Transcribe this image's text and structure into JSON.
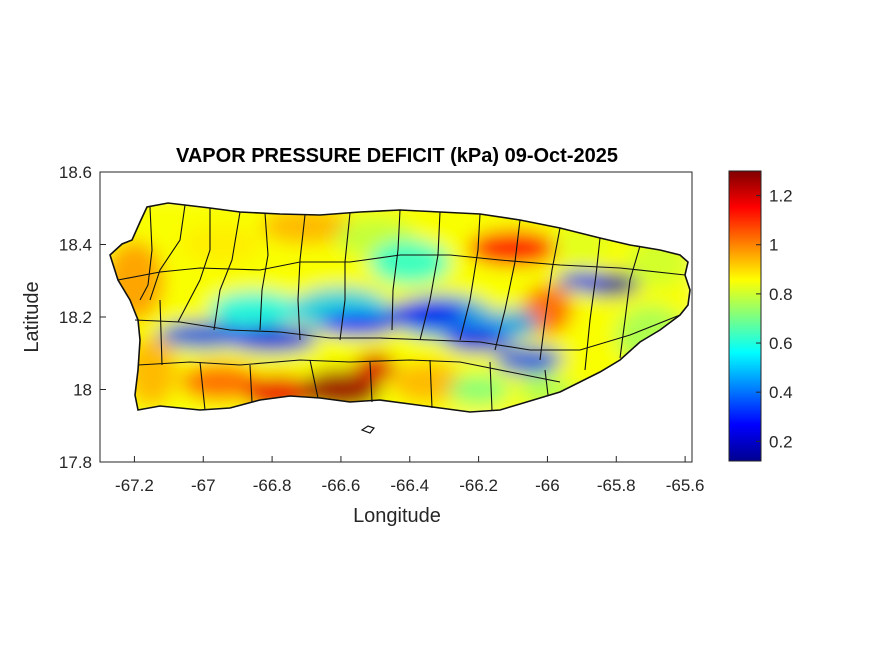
{
  "chart_data": {
    "type": "heatmap",
    "title": "VAPOR PRESSURE DEFICIT (kPa) 09-Oct-2025",
    "xlabel": "Longitude",
    "ylabel": "Latitude",
    "xlim": [
      -67.3,
      -65.58
    ],
    "ylim": [
      17.8,
      18.6
    ],
    "x_ticks": [
      -67.2,
      -67,
      -66.8,
      -66.6,
      -66.4,
      -66.2,
      -66,
      -65.8,
      -65.6
    ],
    "x_tick_labels": [
      "-67.2",
      "-67",
      "-66.8",
      "-66.6",
      "-66.4",
      "-66.2",
      "-66",
      "-65.8",
      "-65.6"
    ],
    "y_ticks": [
      17.8,
      18,
      18.2,
      18.4,
      18.6
    ],
    "y_tick_labels": [
      "17.8",
      "18",
      "18.2",
      "18.4",
      "18.6"
    ],
    "colorbar": {
      "colormap": "jet",
      "range": [
        0.12,
        1.3
      ],
      "ticks": [
        0.2,
        0.4,
        0.6,
        0.8,
        1,
        1.2
      ],
      "tick_labels": [
        "0.2",
        "0.4",
        "0.6",
        "0.8",
        "1",
        "1.2"
      ]
    },
    "grid": false,
    "features": [
      {
        "description": "low VPD band along central mountains",
        "lon": [
          -67.0,
          -65.95
        ],
        "lat": [
          18.08,
          18.25
        ],
        "value": 0.3
      },
      {
        "description": "low VPD core in east",
        "lon": -65.8,
        "lat": 18.29,
        "value": 0.15
      },
      {
        "description": "high VPD on south coast",
        "lon": [
          -66.8,
          -66.45
        ],
        "lat": 18.0,
        "value": 1.25
      },
      {
        "description": "high VPD north-central coast",
        "lon": [
          -66.2,
          -66.0
        ],
        "lat": 18.39,
        "value": 1.15
      }
    ]
  }
}
